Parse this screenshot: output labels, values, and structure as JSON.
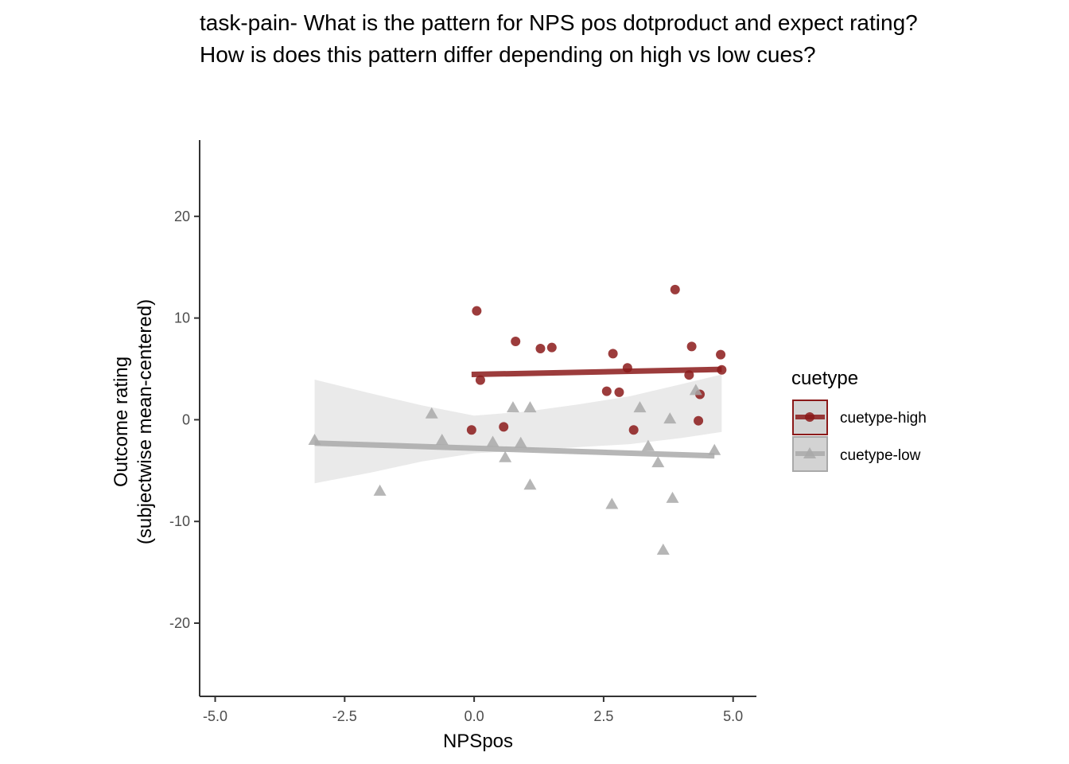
{
  "chart_data": {
    "type": "scatter",
    "title_lines": [
      "task-pain- What is the pattern for NPS pos dotproduct and expect rating?",
      "How is does this pattern differ depending on high vs low cues?"
    ],
    "xlabel": "NPSpos",
    "ylabel_lines": [
      "Outcome rating",
      "(subjectwise mean-centered)"
    ],
    "xlim": [
      -5.3,
      5.45
    ],
    "ylim": [
      -27.2,
      27.5
    ],
    "xticks": [
      -5.0,
      -2.5,
      0.0,
      2.5,
      5.0
    ],
    "xtick_labels": [
      "-5.0",
      "-2.5",
      "0.0",
      "2.5",
      "5.0"
    ],
    "yticks": [
      -20,
      -10,
      0,
      10,
      20
    ],
    "ytick_labels": [
      "-20",
      "-10",
      "0",
      "10",
      "20"
    ],
    "grid": false,
    "legend": {
      "title": "cuetype",
      "placement": "right"
    },
    "series": [
      {
        "name": "cuetype-high",
        "label": "cuetype-high",
        "color": "#8b1a1a",
        "marker": "circle",
        "points": [
          [
            0.05,
            10.7
          ],
          [
            0.12,
            3.9
          ],
          [
            -0.05,
            -1.0
          ],
          [
            0.57,
            -0.7
          ],
          [
            0.8,
            7.7
          ],
          [
            1.28,
            7.0
          ],
          [
            1.5,
            7.1
          ],
          [
            2.56,
            2.8
          ],
          [
            2.68,
            6.5
          ],
          [
            2.8,
            2.7
          ],
          [
            2.96,
            5.1
          ],
          [
            3.08,
            -1.0
          ],
          [
            3.88,
            12.8
          ],
          [
            4.15,
            4.4
          ],
          [
            4.2,
            7.2
          ],
          [
            4.33,
            -0.1
          ],
          [
            4.36,
            2.5
          ],
          [
            4.76,
            6.4
          ],
          [
            4.78,
            4.9
          ]
        ],
        "fit": {
          "x": [
            -0.05,
            4.78
          ],
          "y": [
            4.45,
            4.95
          ]
        }
      },
      {
        "name": "cuetype-low",
        "label": "cuetype-low",
        "color": "#a9a9a9",
        "marker": "triangle",
        "points": [
          [
            -3.08,
            -2.0
          ],
          [
            -1.82,
            -7.0
          ],
          [
            -0.82,
            0.6
          ],
          [
            -0.62,
            -2.0
          ],
          [
            0.36,
            -2.2
          ],
          [
            0.6,
            -3.7
          ],
          [
            0.75,
            1.2
          ],
          [
            0.9,
            -2.3
          ],
          [
            1.08,
            1.2
          ],
          [
            1.08,
            -6.4
          ],
          [
            2.66,
            -8.3
          ],
          [
            3.2,
            1.2
          ],
          [
            3.36,
            -2.6
          ],
          [
            3.55,
            -4.2
          ],
          [
            3.78,
            0.1
          ],
          [
            3.83,
            -7.7
          ],
          [
            3.65,
            -12.8
          ],
          [
            4.28,
            2.9
          ],
          [
            4.64,
            -3.0
          ]
        ],
        "fit": {
          "x": [
            -3.08,
            4.64
          ],
          "y": [
            -2.3,
            -3.55
          ]
        },
        "ribbon": {
          "x": [
            -3.08,
            -2.0,
            -1.0,
            0.0,
            1.0,
            2.0,
            3.0,
            4.0,
            4.78
          ],
          "upper": [
            3.95,
            2.6,
            1.4,
            0.4,
            0.8,
            1.5,
            2.3,
            3.5,
            4.45
          ],
          "lower": [
            -6.25,
            -5.2,
            -4.1,
            -3.3,
            -3.0,
            -2.7,
            -2.4,
            -1.8,
            -1.2
          ]
        }
      }
    ]
  }
}
